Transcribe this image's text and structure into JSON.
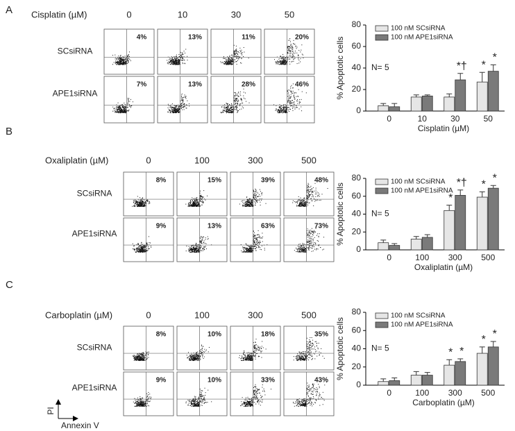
{
  "panels": [
    {
      "letter": "A",
      "drug": "Cisplatin (µM)",
      "concentrations": [
        "0",
        "10",
        "30",
        "50"
      ],
      "rows": [
        {
          "label": "SCsiRNA",
          "percentages": [
            "4%",
            "13%",
            "11%",
            "20%"
          ]
        },
        {
          "label": "APE1siRNA",
          "percentages": [
            "7%",
            "13%",
            "28%",
            "46%"
          ]
        }
      ]
    },
    {
      "letter": "B",
      "drug": "Oxaliplatin (µM)",
      "concentrations": [
        "0",
        "100",
        "300",
        "500"
      ],
      "rows": [
        {
          "label": "SCsiRNA",
          "percentages": [
            "8%",
            "15%",
            "39%",
            "48%"
          ]
        },
        {
          "label": "APE1siRNA",
          "percentages": [
            "9%",
            "13%",
            "63%",
            "73%"
          ]
        }
      ]
    },
    {
      "letter": "C",
      "drug": "Carboplatin (µM)",
      "concentrations": [
        "0",
        "100",
        "300",
        "500"
      ],
      "rows": [
        {
          "label": "SCsiRNA",
          "percentages": [
            "8%",
            "10%",
            "18%",
            "35%"
          ]
        },
        {
          "label": "APE1siRNA",
          "percentages": [
            "9%",
            "10%",
            "33%",
            "43%"
          ]
        }
      ]
    }
  ],
  "axis_key": {
    "y": "PI",
    "x": "Annexin V"
  },
  "chart_data": [
    {
      "type": "bar",
      "x_label": "Cisplatin (µM)",
      "y_label": "% Apoptotic cells",
      "note": "N= 5",
      "categories": [
        "0",
        "10",
        "30",
        "50"
      ],
      "ylim": [
        0,
        80
      ],
      "yticks": [
        0,
        20,
        40,
        60,
        80
      ],
      "grid": false,
      "legend": "upper-left",
      "series": [
        {
          "name": "100 nM SCsiRNA",
          "color": "#e6e6e6",
          "values": [
            5,
            13,
            13,
            27
          ],
          "errors": [
            2,
            2,
            3,
            9
          ],
          "significance": [
            null,
            null,
            null,
            "*"
          ]
        },
        {
          "name": "100 nM APE1siRNA",
          "color": "#7a7a7a",
          "values": [
            4,
            14,
            29,
            37
          ],
          "errors": [
            3,
            1,
            6,
            6
          ],
          "significance": [
            null,
            null,
            "*†",
            "*"
          ]
        }
      ]
    },
    {
      "type": "bar",
      "x_label": "Oxaliplatin (µM)",
      "y_label": "% Apoptotic cells",
      "note": "N= 5",
      "categories": [
        "0",
        "100",
        "300",
        "500"
      ],
      "ylim": [
        0,
        80
      ],
      "yticks": [
        0,
        20,
        40,
        60,
        80
      ],
      "grid": false,
      "legend": "upper-left",
      "series": [
        {
          "name": "100 nM SCsiRNA",
          "color": "#e6e6e6",
          "values": [
            8,
            12,
            44,
            59
          ],
          "errors": [
            3,
            3,
            6,
            6
          ],
          "significance": [
            null,
            null,
            "*",
            "*"
          ]
        },
        {
          "name": "100 nM APE1siRNA",
          "color": "#7a7a7a",
          "values": [
            5,
            14,
            61,
            69
          ],
          "errors": [
            2,
            3,
            6,
            3
          ],
          "significance": [
            null,
            null,
            "*†",
            "*"
          ]
        }
      ]
    },
    {
      "type": "bar",
      "x_label": "Carboplatin (µM)",
      "y_label": "% Apoptotic cells",
      "note": "N= 5",
      "categories": [
        "0",
        "100",
        "300",
        "500"
      ],
      "ylim": [
        0,
        80
      ],
      "yticks": [
        0,
        20,
        40,
        60,
        80
      ],
      "grid": false,
      "legend": "upper-left",
      "series": [
        {
          "name": "100 nM SCsiRNA",
          "color": "#e6e6e6",
          "values": [
            4,
            11,
            22,
            35
          ],
          "errors": [
            3,
            4,
            6,
            7
          ],
          "significance": [
            null,
            null,
            "*",
            "*"
          ]
        },
        {
          "name": "100 nM APE1siRNA",
          "color": "#7a7a7a",
          "values": [
            5,
            11,
            26,
            42
          ],
          "errors": [
            3,
            3,
            3,
            6
          ],
          "significance": [
            null,
            null,
            "*",
            "*"
          ]
        }
      ]
    }
  ]
}
